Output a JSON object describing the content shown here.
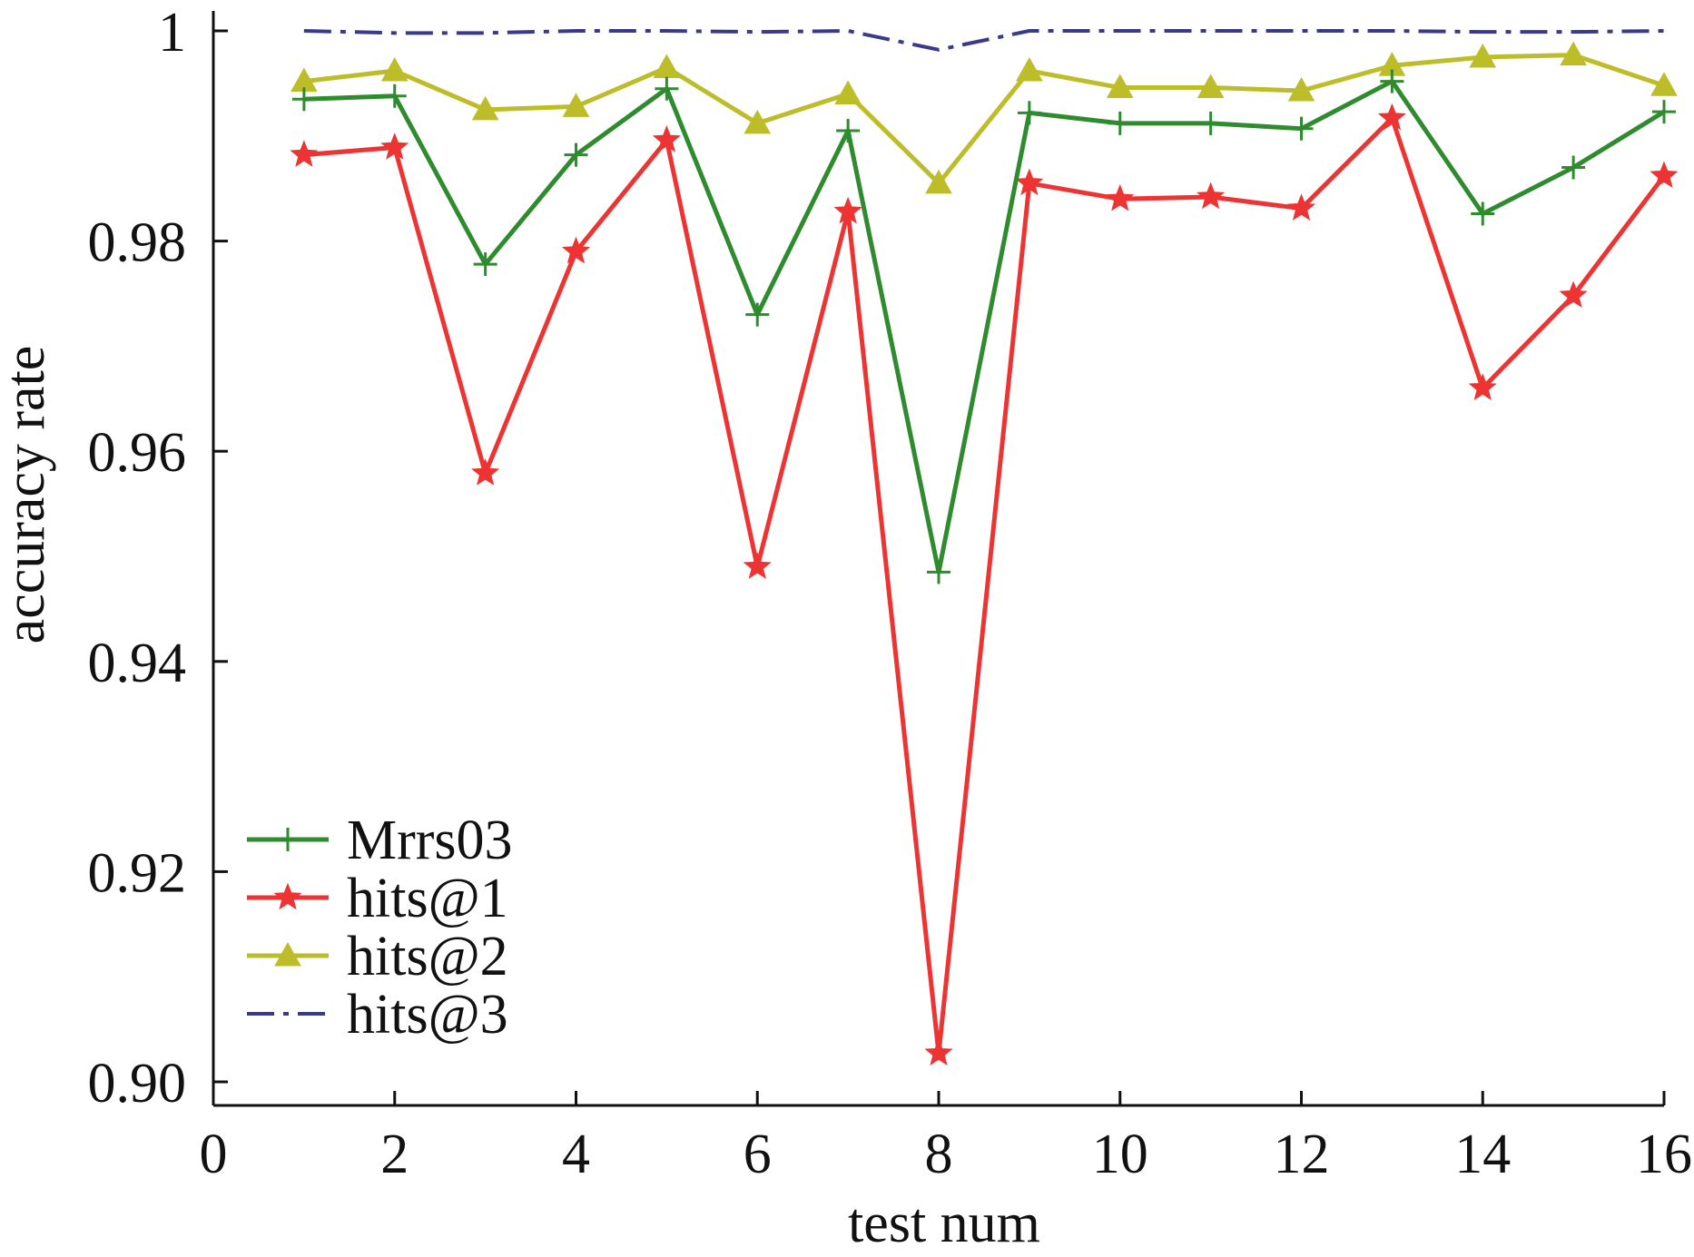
{
  "chart_data": {
    "type": "line",
    "title": "",
    "xlabel": "test num",
    "ylabel": "accuracy rate",
    "xlim": [
      0,
      16
    ],
    "ylim": [
      0.898,
      1.0
    ],
    "xticks": [
      0,
      2,
      4,
      6,
      8,
      10,
      12,
      14,
      16
    ],
    "xtick_labels": [
      "0",
      "2",
      "4",
      "6",
      "8",
      "10",
      "12",
      "14",
      "16"
    ],
    "yticks": [
      0.9,
      0.92,
      0.94,
      0.96,
      0.98,
      1.0
    ],
    "ytick_labels": [
      "0.90",
      "0.92",
      "0.94",
      "0.96",
      "0.98",
      "1"
    ],
    "grid": false,
    "legend_position": "bottom-left",
    "x": [
      1,
      2,
      3,
      4,
      5,
      6,
      7,
      8,
      9,
      10,
      11,
      12,
      13,
      14,
      15,
      16
    ],
    "series": [
      {
        "name": "Mrrs03",
        "color": "#2e8b2e",
        "marker": "plus",
        "line_style": "solid",
        "values": [
          0.9935,
          0.9938,
          0.9778,
          0.9882,
          0.9945,
          0.973,
          0.9905,
          0.9485,
          0.9922,
          0.9912,
          0.9912,
          0.9907,
          0.9952,
          0.9826,
          0.987,
          0.9923
        ]
      },
      {
        "name": "hits@1",
        "color": "#ee3333",
        "marker": "star",
        "line_style": "solid",
        "values": [
          0.9882,
          0.9889,
          0.9579,
          0.979,
          0.9896,
          0.949,
          0.9828,
          0.9027,
          0.9855,
          0.984,
          0.9842,
          0.9831,
          0.9917,
          0.966,
          0.9748,
          0.9862
        ]
      },
      {
        "name": "hits@2",
        "color": "#bdbd2a",
        "marker": "triangle",
        "line_style": "solid",
        "values": [
          0.9952,
          0.9962,
          0.9925,
          0.9928,
          0.9965,
          0.9912,
          0.994,
          0.9855,
          0.9962,
          0.9946,
          0.9946,
          0.9943,
          0.9967,
          0.9975,
          0.9977,
          0.9948
        ]
      },
      {
        "name": "hits@3",
        "color": "#3a3a8c",
        "marker": "none",
        "line_style": "dashdot",
        "values": [
          1.0,
          0.9998,
          0.9998,
          1.0,
          1.0,
          0.9999,
          1.0,
          0.9982,
          1.0,
          1.0,
          1.0,
          1.0,
          1.0,
          0.9999,
          0.9999,
          1.0
        ]
      }
    ]
  }
}
